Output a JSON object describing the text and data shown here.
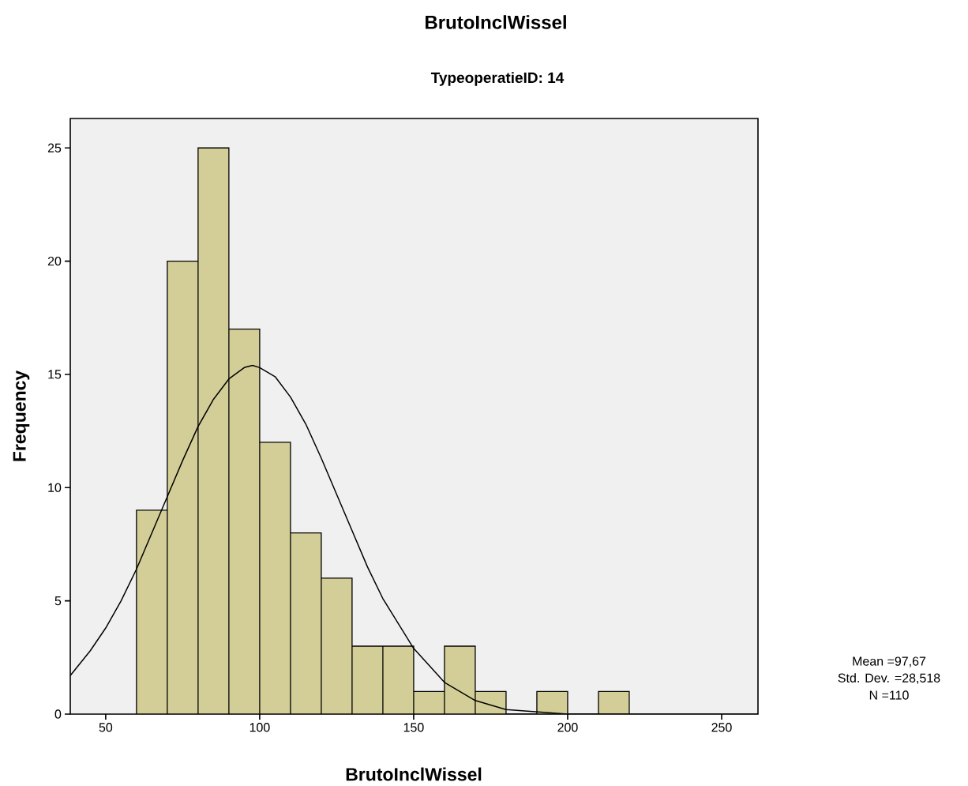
{
  "chart_data": {
    "type": "histogram",
    "title": "BrutoInclWissel",
    "subtitle": "TypeoperatieID: 14",
    "xlabel": "BrutoInclWissel",
    "ylabel": "Frequency",
    "bins": [
      60,
      70,
      80,
      90,
      100,
      110,
      120,
      130,
      140,
      150,
      160,
      170,
      180,
      190,
      200,
      210,
      220
    ],
    "values": [
      9,
      20,
      25,
      17,
      12,
      8,
      6,
      3,
      3,
      1,
      3,
      1,
      0,
      1,
      0,
      1
    ],
    "color": "#d3ce97",
    "series": [
      {
        "type": "line",
        "color": "#000000",
        "x": [
          38.5,
          45,
          50,
          55,
          60,
          65,
          70,
          75,
          80,
          85,
          90,
          95,
          97.67,
          100,
          105,
          110,
          115,
          120,
          125,
          130,
          135,
          140,
          150,
          160,
          170,
          180,
          190,
          200,
          220,
          240,
          261.8
        ],
        "values": [
          1.7,
          2.8,
          3.8,
          5.0,
          6.4,
          8.0,
          9.6,
          11.2,
          12.7,
          13.9,
          14.8,
          15.3,
          15.4,
          15.3,
          14.9,
          14.0,
          12.8,
          11.3,
          9.7,
          8.1,
          6.5,
          5.1,
          2.9,
          1.4,
          0.6,
          0.2,
          0.1,
          0.0,
          0.0,
          0.0,
          0.0
        ]
      }
    ],
    "xlim": [
      38.5,
      261.8
    ],
    "ylim": [
      0,
      26.3
    ],
    "xticks": [
      50,
      100,
      150,
      200,
      250
    ],
    "yticks": [
      0,
      5,
      10,
      15,
      20,
      25
    ],
    "grid": false,
    "annotations": [
      "Mean =97,67",
      "Std. Dev. =28,518",
      "N =110"
    ]
  }
}
